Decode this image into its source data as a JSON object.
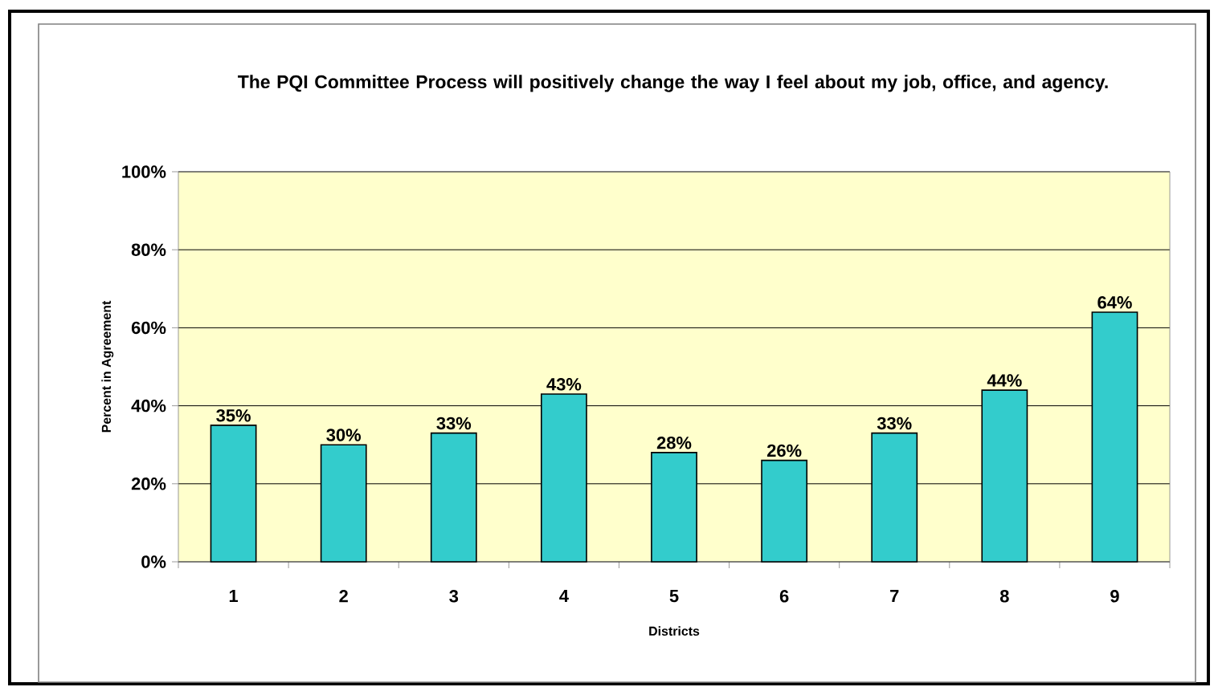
{
  "chart_data": {
    "type": "bar",
    "title": "The PQI Committee Process will positively change the way I feel about my job, office, and agency.",
    "xlabel": "Districts",
    "ylabel": "Percent in Agreement",
    "categories": [
      "1",
      "2",
      "3",
      "4",
      "5",
      "6",
      "7",
      "8",
      "9"
    ],
    "values": [
      35,
      30,
      33,
      43,
      28,
      26,
      33,
      44,
      64
    ],
    "value_labels": [
      "35%",
      "30%",
      "33%",
      "43%",
      "28%",
      "26%",
      "33%",
      "44%",
      "64%"
    ],
    "color": "#33cccc",
    "ylim": [
      0,
      100
    ],
    "yticks": [
      {
        "value": 0,
        "label": "0%"
      },
      {
        "value": 20,
        "label": "20%"
      },
      {
        "value": 40,
        "label": "40%"
      },
      {
        "value": 60,
        "label": "60%"
      },
      {
        "value": 80,
        "label": "80%"
      },
      {
        "value": 100,
        "label": "100%"
      }
    ],
    "grid": "y"
  }
}
